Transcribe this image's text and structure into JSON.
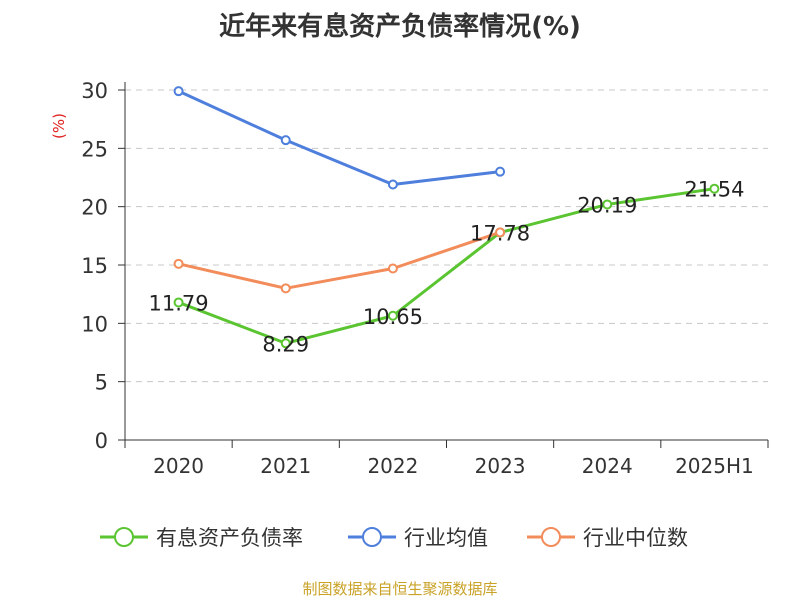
{
  "chart_data": {
    "type": "line",
    "title": "近年来有息资产负债率情况(%)",
    "ylabel": "(%)",
    "categories": [
      "2020",
      "2021",
      "2022",
      "2023",
      "2024",
      "2025H1"
    ],
    "ylim": [
      0,
      30
    ],
    "yticks": [
      "0",
      "5",
      "10",
      "15",
      "20",
      "25",
      "30"
    ],
    "grid": true,
    "legend_position": "bottom",
    "series": [
      {
        "name": "有息资产负债率",
        "color": "#5ac531",
        "values": [
          11.79,
          8.29,
          10.65,
          17.78,
          20.19,
          21.54
        ],
        "labels": [
          "11.79",
          "8.29",
          "10.65",
          "17.78",
          "20.19",
          "21.54"
        ]
      },
      {
        "name": "行业均值",
        "color": "#4e7fdc",
        "values": [
          29.9,
          25.7,
          21.9,
          23.0,
          null,
          null
        ]
      },
      {
        "name": "行业中位数",
        "color": "#f28c5a",
        "values": [
          15.1,
          13.0,
          14.7,
          17.8,
          null,
          null
        ]
      }
    ]
  },
  "source": "制图数据来自恒生聚源数据库"
}
